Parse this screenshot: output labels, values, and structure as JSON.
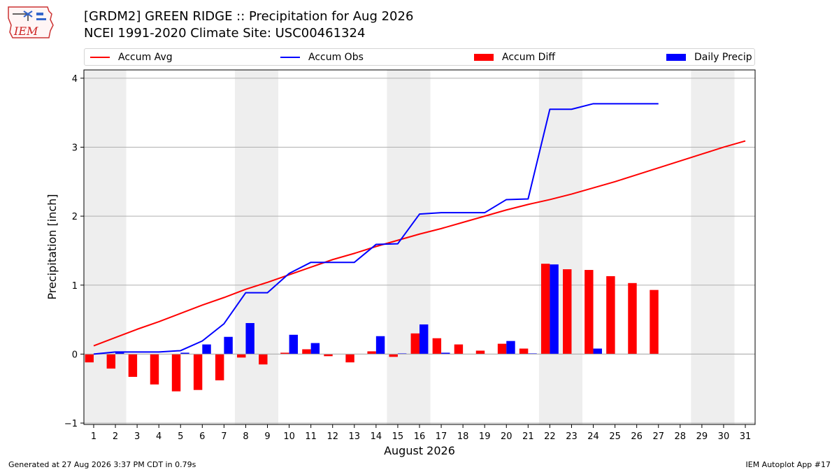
{
  "logo": {
    "text": "IEM"
  },
  "title": {
    "line1": "[GRDM2] GREEN RIDGE :: Precipitation for Aug 2026",
    "line2": "NCEI 1991-2020 Climate Site: USC00461324"
  },
  "footer": {
    "left": "Generated at 27 Aug 2026 3:37 PM CDT in 0.79s",
    "right": "IEM Autoplot App #17"
  },
  "colors": {
    "avg": "#ff0000",
    "obs": "#0000ff",
    "diff": "#ff0000",
    "daily": "#0000ff",
    "weekend": "#eeeeee"
  },
  "chart_data": {
    "type": "bar",
    "xlabel": "August 2026",
    "ylabel": "Precipitation [inch]",
    "ylim": [
      -1.02,
      4.12
    ],
    "yticks": [
      -1,
      0,
      1,
      2,
      3,
      4
    ],
    "xlim": [
      0.55,
      31.45
    ],
    "grid": "y",
    "legend_placement": "top",
    "weekend_bands": [
      [
        0.5,
        2.5
      ],
      [
        7.5,
        9.5
      ],
      [
        14.5,
        16.5
      ],
      [
        21.5,
        23.5
      ],
      [
        28.5,
        30.5
      ]
    ],
    "days": [
      1,
      2,
      3,
      4,
      5,
      6,
      7,
      8,
      9,
      10,
      11,
      12,
      13,
      14,
      15,
      16,
      17,
      18,
      19,
      20,
      21,
      22,
      23,
      24,
      25,
      26,
      27,
      28,
      29,
      30,
      31
    ],
    "series": [
      {
        "name": "Accum Avg",
        "kind": "line",
        "values": [
          0.12,
          0.24,
          0.36,
          0.47,
          0.59,
          0.71,
          0.82,
          0.94,
          1.04,
          1.15,
          1.26,
          1.37,
          1.46,
          1.56,
          1.65,
          1.74,
          1.82,
          1.91,
          2.0,
          2.09,
          2.17,
          2.24,
          2.32,
          2.41,
          2.5,
          2.6,
          2.7,
          2.8,
          2.9,
          3.0,
          3.09
        ]
      },
      {
        "name": "Accum Obs",
        "kind": "line",
        "values": [
          0.0,
          0.03,
          0.03,
          0.03,
          0.05,
          0.19,
          0.44,
          0.89,
          0.89,
          1.17,
          1.33,
          1.33,
          1.33,
          1.59,
          1.6,
          2.03,
          2.05,
          2.05,
          2.05,
          2.24,
          2.25,
          3.55,
          3.55,
          3.63,
          3.63,
          3.63,
          3.63
        ]
      },
      {
        "name": "Accum Diff",
        "kind": "bar",
        "values": [
          -0.12,
          -0.21,
          -0.33,
          -0.44,
          -0.54,
          -0.52,
          -0.38,
          -0.05,
          -0.15,
          0.02,
          0.07,
          -0.03,
          -0.12,
          0.04,
          -0.04,
          0.3,
          0.23,
          0.14,
          0.05,
          0.15,
          0.08,
          1.31,
          1.23,
          1.22,
          1.13,
          1.03,
          0.93
        ]
      },
      {
        "name": "Daily Precip",
        "kind": "bar",
        "values": [
          0.0,
          0.03,
          0.0,
          0.0,
          0.02,
          0.14,
          0.25,
          0.45,
          0.0,
          0.28,
          0.16,
          0.0,
          0.0,
          0.26,
          0.01,
          0.43,
          0.02,
          0.0,
          0.0,
          0.19,
          0.01,
          1.3,
          0.0,
          0.08,
          0.0,
          0.0,
          0.0
        ]
      }
    ]
  }
}
